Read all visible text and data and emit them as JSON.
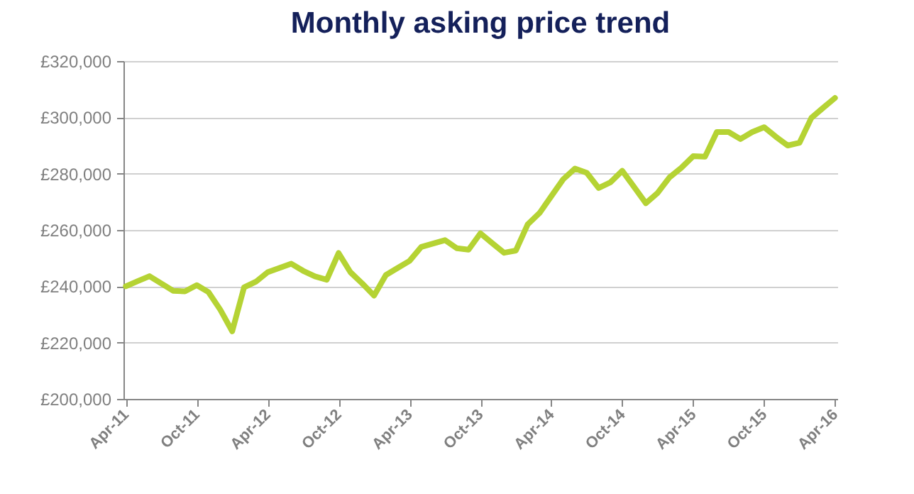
{
  "chart_data": {
    "type": "line",
    "title": "Monthly asking price trend",
    "categories": [
      "Apr-11",
      null,
      null,
      null,
      null,
      null,
      "Oct-11",
      null,
      null,
      null,
      null,
      null,
      "Apr-12",
      null,
      null,
      null,
      null,
      null,
      "Oct-12",
      null,
      null,
      null,
      null,
      null,
      "Apr-13",
      null,
      null,
      null,
      null,
      null,
      "Oct-13",
      null,
      null,
      null,
      null,
      null,
      "Apr-14",
      null,
      null,
      null,
      null,
      null,
      "Oct-14",
      null,
      null,
      null,
      null,
      null,
      "Apr-15",
      null,
      null,
      null,
      null,
      null,
      "Oct-15",
      null,
      null,
      null,
      null,
      null,
      "Apr-16"
    ],
    "series": [
      {
        "color": "#b5d334",
        "values": [
          240000,
          241800,
          243600,
          241000,
          238400,
          238200,
          240400,
          237900,
          231600,
          224000,
          239600,
          241600,
          245000,
          246500,
          248000,
          245500,
          243500,
          242300,
          251800,
          245000,
          241000,
          236700,
          244000,
          246500,
          249000,
          254000,
          255200,
          256400,
          253500,
          253000,
          258800,
          255300,
          251900,
          252700,
          262000,
          266000,
          272000,
          278000,
          281800,
          280300,
          274900,
          276900,
          281000,
          275300,
          269500,
          273200,
          278700,
          282100,
          286200,
          286000,
          294800,
          294800,
          292300,
          294800,
          296500,
          293100,
          290000,
          291000,
          299800,
          303400,
          306900
        ]
      }
    ],
    "ylim": [
      200000,
      320000
    ],
    "yticks": [
      {
        "value": 200000,
        "label": "£200,000"
      },
      {
        "value": 220000,
        "label": "£220,000"
      },
      {
        "value": 240000,
        "label": "£240,000"
      },
      {
        "value": 260000,
        "label": "£260,000"
      },
      {
        "value": 280000,
        "label": "£280,000"
      },
      {
        "value": 300000,
        "label": "£300,000"
      },
      {
        "value": 320000,
        "label": "£320,000"
      }
    ],
    "grid": "y",
    "marker": "none",
    "line_style": "solid"
  }
}
